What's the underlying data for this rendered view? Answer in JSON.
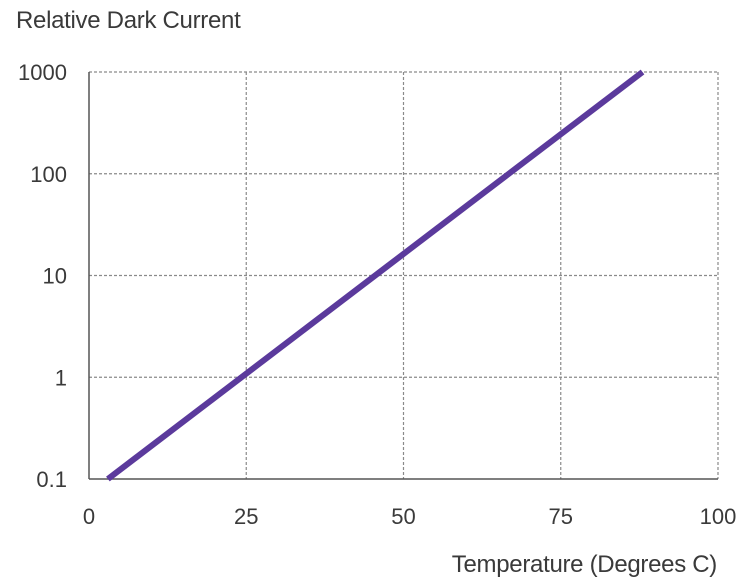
{
  "chart_data": {
    "type": "line",
    "title": "",
    "ylabel": "Relative Dark Current",
    "xlabel": "Temperature (Degrees C)",
    "x_ticks": [
      0,
      25,
      50,
      75,
      100
    ],
    "y_ticks": [
      0.1,
      1,
      10,
      100,
      1000
    ],
    "y_tick_labels": [
      "0.1",
      "1",
      "10",
      "100",
      "1000"
    ],
    "xlim": [
      0,
      100
    ],
    "ylim": [
      0.1,
      1000
    ],
    "y_scale": "log",
    "grid": true,
    "grid_style": "dashed",
    "legend": "none",
    "series": [
      {
        "x": [
          3,
          88
        ],
        "y": [
          0.1,
          1000
        ],
        "color": "#5b3a9c"
      }
    ]
  },
  "colors": {
    "line": "#5b3a9c",
    "grid": "#8a8a8a",
    "axis": "#555555",
    "text": "#3a3a3a"
  }
}
